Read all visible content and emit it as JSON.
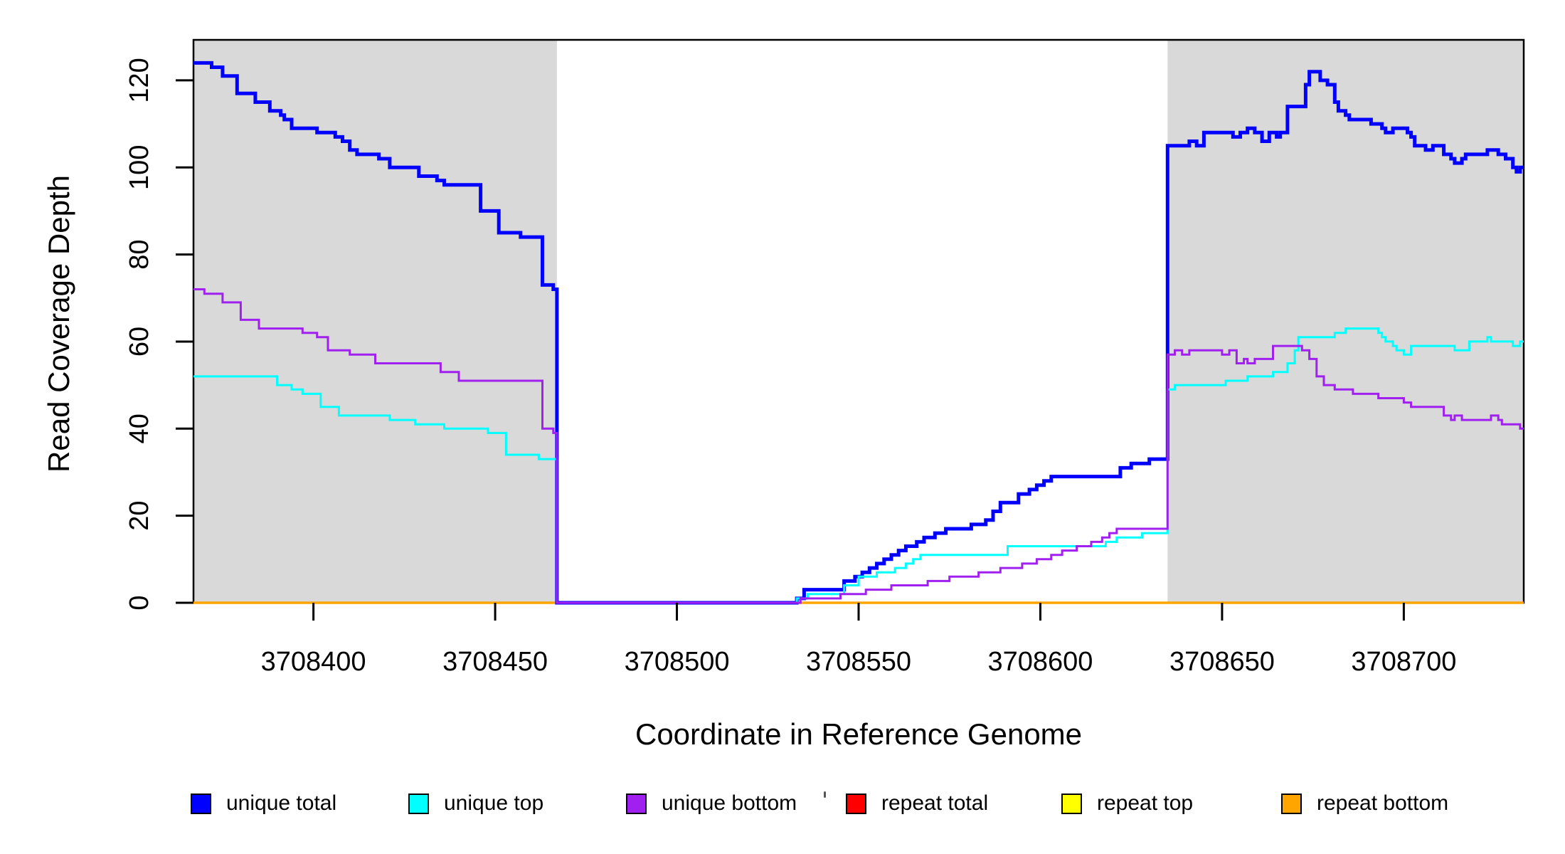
{
  "figure": {
    "background": "#FFFFFF",
    "box_color": "#000000",
    "shade_color": "#D9D9D9"
  },
  "chart_data": {
    "type": "line",
    "step": "after",
    "title": "",
    "xlabel": "Coordinate in Reference Genome",
    "ylabel": "Read Coverage Depth",
    "xlim": [
      3708367,
      3708733
    ],
    "ylim": [
      0,
      129.3
    ],
    "grid": false,
    "x_ticks": [
      3708400,
      3708450,
      3708500,
      3708550,
      3708600,
      3708650,
      3708700
    ],
    "y_ticks": [
      0,
      20,
      40,
      60,
      80,
      100,
      120
    ],
    "legend_position": "bottom",
    "shaded_regions": [
      {
        "x0": 3708367,
        "x1": 3708467,
        "color": "#D9D9D9"
      },
      {
        "x0": 3708635,
        "x1": 3708733,
        "color": "#D9D9D9"
      }
    ],
    "series": [
      {
        "name": "repeat total",
        "color": "#FF0000",
        "width": 3,
        "points": [
          [
            3708367,
            0
          ],
          [
            3708733,
            0
          ]
        ]
      },
      {
        "name": "repeat top",
        "color": "#FFFF00",
        "width": 3,
        "points": [
          [
            3708367,
            0
          ],
          [
            3708733,
            0
          ]
        ]
      },
      {
        "name": "repeat bottom",
        "color": "#FFA500",
        "width": 3.5,
        "points": [
          [
            3708367,
            0
          ],
          [
            3708733,
            0
          ]
        ]
      },
      {
        "name": "unique total",
        "color": "#0000FF",
        "width": 5,
        "points": [
          [
            3708367,
            124
          ],
          [
            3708372,
            123
          ],
          [
            3708375,
            121
          ],
          [
            3708379,
            117
          ],
          [
            3708384,
            115
          ],
          [
            3708388,
            113
          ],
          [
            3708391,
            112
          ],
          [
            3708392,
            111
          ],
          [
            3708394,
            109
          ],
          [
            3708401,
            108
          ],
          [
            3708406,
            107
          ],
          [
            3708408,
            106
          ],
          [
            3708410,
            104
          ],
          [
            3708412,
            103
          ],
          [
            3708418,
            102
          ],
          [
            3708421,
            100
          ],
          [
            3708429,
            98
          ],
          [
            3708434,
            97
          ],
          [
            3708436,
            96
          ],
          [
            3708446,
            90
          ],
          [
            3708451,
            85
          ],
          [
            3708457,
            84
          ],
          [
            3708463,
            73
          ],
          [
            3708466,
            72
          ],
          [
            3708467,
            0
          ],
          [
            3708533,
            1
          ],
          [
            3708535,
            3
          ],
          [
            3708546,
            5
          ],
          [
            3708549,
            6
          ],
          [
            3708551,
            7
          ],
          [
            3708553,
            8
          ],
          [
            3708555,
            9
          ],
          [
            3708557,
            10
          ],
          [
            3708559,
            11
          ],
          [
            3708561,
            12
          ],
          [
            3708563,
            13
          ],
          [
            3708566,
            14
          ],
          [
            3708568,
            15
          ],
          [
            3708571,
            16
          ],
          [
            3708574,
            17
          ],
          [
            3708581,
            18
          ],
          [
            3708585,
            19
          ],
          [
            3708587,
            21
          ],
          [
            3708589,
            23
          ],
          [
            3708594,
            25
          ],
          [
            3708597,
            26
          ],
          [
            3708599,
            27
          ],
          [
            3708601,
            28
          ],
          [
            3708603,
            29
          ],
          [
            3708622,
            31
          ],
          [
            3708625,
            32
          ],
          [
            3708630,
            33
          ],
          [
            3708635,
            105
          ],
          [
            3708641,
            106
          ],
          [
            3708643,
            105
          ],
          [
            3708645,
            108
          ],
          [
            3708653,
            107
          ],
          [
            3708655,
            108
          ],
          [
            3708657,
            109
          ],
          [
            3708659,
            108
          ],
          [
            3708661,
            106
          ],
          [
            3708663,
            108
          ],
          [
            3708665,
            107
          ],
          [
            3708666,
            108
          ],
          [
            3708668,
            114
          ],
          [
            3708673,
            119
          ],
          [
            3708674,
            122
          ],
          [
            3708677,
            120
          ],
          [
            3708679,
            119
          ],
          [
            3708681,
            115
          ],
          [
            3708682,
            113
          ],
          [
            3708684,
            112
          ],
          [
            3708685,
            111
          ],
          [
            3708691,
            110
          ],
          [
            3708694,
            109
          ],
          [
            3708695,
            108
          ],
          [
            3708697,
            109
          ],
          [
            3708701,
            108
          ],
          [
            3708702,
            107
          ],
          [
            3708703,
            105
          ],
          [
            3708706,
            104
          ],
          [
            3708708,
            105
          ],
          [
            3708711,
            103
          ],
          [
            3708713,
            102
          ],
          [
            3708714,
            101
          ],
          [
            3708716,
            102
          ],
          [
            3708717,
            103
          ],
          [
            3708723,
            104
          ],
          [
            3708726,
            103
          ],
          [
            3708728,
            102
          ],
          [
            3708730,
            100
          ],
          [
            3708731,
            99
          ],
          [
            3708732,
            100
          ],
          [
            3708733,
            100
          ]
        ]
      },
      {
        "name": "unique top",
        "color": "#00FFFF",
        "width": 3,
        "points": [
          [
            3708367,
            52
          ],
          [
            3708390,
            50
          ],
          [
            3708394,
            49
          ],
          [
            3708397,
            48
          ],
          [
            3708402,
            45
          ],
          [
            3708407,
            43
          ],
          [
            3708421,
            42
          ],
          [
            3708428,
            41
          ],
          [
            3708436,
            40
          ],
          [
            3708448,
            39
          ],
          [
            3708453,
            34
          ],
          [
            3708462,
            33
          ],
          [
            3708467,
            0
          ],
          [
            3708533,
            1
          ],
          [
            3708536,
            2
          ],
          [
            3708546,
            4
          ],
          [
            3708550,
            6
          ],
          [
            3708555,
            7
          ],
          [
            3708560,
            8
          ],
          [
            3708563,
            9
          ],
          [
            3708565,
            10
          ],
          [
            3708567,
            11
          ],
          [
            3708591,
            13
          ],
          [
            3708618,
            14
          ],
          [
            3708621,
            15
          ],
          [
            3708628,
            16
          ],
          [
            3708635,
            49
          ],
          [
            3708637,
            50
          ],
          [
            3708651,
            51
          ],
          [
            3708657,
            52
          ],
          [
            3708664,
            53
          ],
          [
            3708668,
            55
          ],
          [
            3708670,
            58
          ],
          [
            3708671,
            61
          ],
          [
            3708681,
            62
          ],
          [
            3708684,
            63
          ],
          [
            3708693,
            62
          ],
          [
            3708694,
            61
          ],
          [
            3708695,
            60
          ],
          [
            3708697,
            59
          ],
          [
            3708698,
            58
          ],
          [
            3708700,
            57
          ],
          [
            3708702,
            59
          ],
          [
            3708714,
            58
          ],
          [
            3708718,
            60
          ],
          [
            3708723,
            61
          ],
          [
            3708724,
            60
          ],
          [
            3708730,
            59
          ],
          [
            3708732,
            60
          ],
          [
            3708733,
            60
          ]
        ]
      },
      {
        "name": "unique bottom",
        "color": "#A020F0",
        "width": 3,
        "points": [
          [
            3708367,
            72
          ],
          [
            3708370,
            71
          ],
          [
            3708375,
            69
          ],
          [
            3708380,
            65
          ],
          [
            3708385,
            63
          ],
          [
            3708397,
            62
          ],
          [
            3708401,
            61
          ],
          [
            3708404,
            58
          ],
          [
            3708410,
            57
          ],
          [
            3708417,
            55
          ],
          [
            3708435,
            53
          ],
          [
            3708440,
            51
          ],
          [
            3708463,
            40
          ],
          [
            3708466,
            39
          ],
          [
            3708467,
            0
          ],
          [
            3708534,
            1
          ],
          [
            3708545,
            2
          ],
          [
            3708552,
            3
          ],
          [
            3708559,
            4
          ],
          [
            3708569,
            5
          ],
          [
            3708575,
            6
          ],
          [
            3708583,
            7
          ],
          [
            3708589,
            8
          ],
          [
            3708595,
            9
          ],
          [
            3708599,
            10
          ],
          [
            3708603,
            11
          ],
          [
            3708606,
            12
          ],
          [
            3708610,
            13
          ],
          [
            3708614,
            14
          ],
          [
            3708617,
            15
          ],
          [
            3708619,
            16
          ],
          [
            3708621,
            17
          ],
          [
            3708635,
            57
          ],
          [
            3708637,
            58
          ],
          [
            3708639,
            57
          ],
          [
            3708641,
            58
          ],
          [
            3708650,
            57
          ],
          [
            3708652,
            58
          ],
          [
            3708654,
            55
          ],
          [
            3708656,
            56
          ],
          [
            3708657,
            55
          ],
          [
            3708659,
            56
          ],
          [
            3708664,
            59
          ],
          [
            3708672,
            58
          ],
          [
            3708674,
            56
          ],
          [
            3708676,
            52
          ],
          [
            3708678,
            50
          ],
          [
            3708681,
            49
          ],
          [
            3708686,
            48
          ],
          [
            3708693,
            47
          ],
          [
            3708700,
            46
          ],
          [
            3708702,
            45
          ],
          [
            3708711,
            43
          ],
          [
            3708713,
            42
          ],
          [
            3708714,
            43
          ],
          [
            3708716,
            42
          ],
          [
            3708724,
            43
          ],
          [
            3708726,
            42
          ],
          [
            3708727,
            41
          ],
          [
            3708732,
            40
          ],
          [
            3708733,
            40
          ]
        ]
      }
    ],
    "legend": [
      {
        "label": "unique total",
        "color": "#0000FF"
      },
      {
        "label": "unique top",
        "color": "#00FFFF"
      },
      {
        "label": "unique bottom",
        "color": "#A020F0"
      },
      {
        "label": "repeat total",
        "color": "#FF0000"
      },
      {
        "label": "repeat top",
        "color": "#FFFF00"
      },
      {
        "label": "repeat bottom",
        "color": "#FFA500"
      }
    ]
  }
}
